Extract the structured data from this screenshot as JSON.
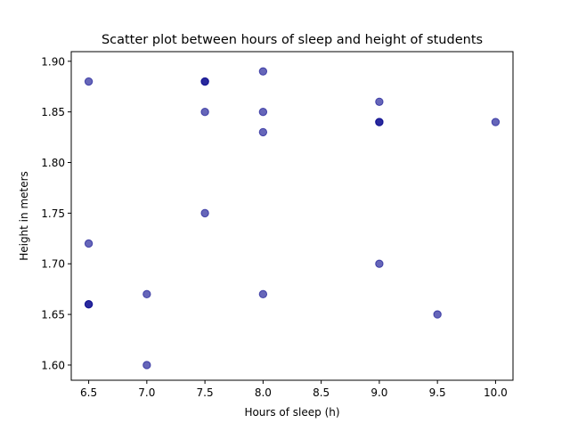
{
  "chart_data": {
    "type": "scatter",
    "title": "Scatter plot between hours of sleep and height of students",
    "xlabel": "Hours of sleep (h)",
    "ylabel": "Height in meters",
    "xlim": [
      6.35,
      10.15
    ],
    "ylim": [
      1.585,
      1.9095
    ],
    "xticks": [
      6.5,
      7.0,
      7.5,
      8.0,
      8.5,
      9.0,
      9.5,
      10.0
    ],
    "xtick_labels": [
      "6.5",
      "7.0",
      "7.5",
      "8.0",
      "8.5",
      "9.0",
      "9.5",
      "10.0"
    ],
    "yticks": [
      1.6,
      1.65,
      1.7,
      1.75,
      1.8,
      1.85,
      1.9
    ],
    "ytick_labels": [
      "1.60",
      "1.65",
      "1.70",
      "1.75",
      "1.80",
      "1.85",
      "1.90"
    ],
    "grid": false,
    "marker_color": "#00008b",
    "marker_alpha": 0.6,
    "series": [
      {
        "points": [
          {
            "x": 6.5,
            "y": 1.88
          },
          {
            "x": 6.5,
            "y": 1.72
          },
          {
            "x": 6.5,
            "y": 1.66
          },
          {
            "x": 6.5,
            "y": 1.66
          },
          {
            "x": 7.0,
            "y": 1.67
          },
          {
            "x": 7.0,
            "y": 1.6
          },
          {
            "x": 7.5,
            "y": 1.88
          },
          {
            "x": 7.5,
            "y": 1.88
          },
          {
            "x": 7.5,
            "y": 1.85
          },
          {
            "x": 7.5,
            "y": 1.75
          },
          {
            "x": 8.0,
            "y": 1.89
          },
          {
            "x": 8.0,
            "y": 1.85
          },
          {
            "x": 8.0,
            "y": 1.83
          },
          {
            "x": 8.0,
            "y": 1.67
          },
          {
            "x": 9.0,
            "y": 1.86
          },
          {
            "x": 9.0,
            "y": 1.84
          },
          {
            "x": 9.0,
            "y": 1.84
          },
          {
            "x": 9.0,
            "y": 1.7
          },
          {
            "x": 9.5,
            "y": 1.65
          },
          {
            "x": 10.0,
            "y": 1.84
          }
        ]
      }
    ]
  }
}
